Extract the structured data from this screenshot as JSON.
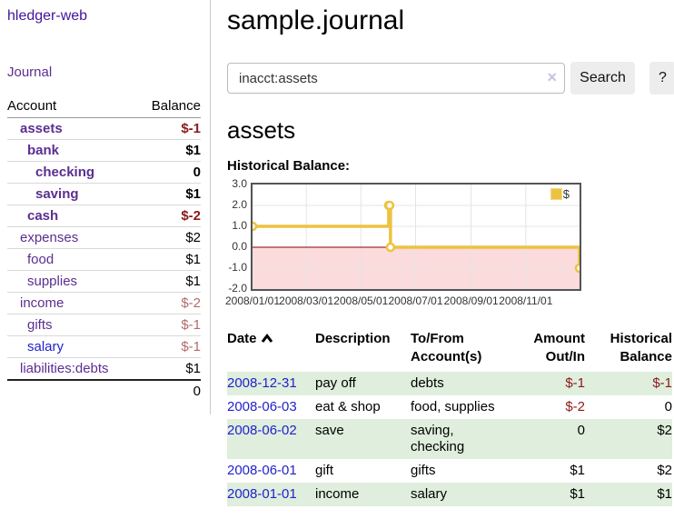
{
  "sidebar": {
    "app_title": "hledger-web",
    "nav": {
      "journal_label": "Journal"
    },
    "accounts": {
      "account_header": "Account",
      "balance_header": "Balance",
      "rows": [
        {
          "name": "assets",
          "balance": "$-1",
          "level": 1,
          "bold": true,
          "link": "purple"
        },
        {
          "name": "bank",
          "balance": "$1",
          "level": 2,
          "bold": true,
          "link": "purple"
        },
        {
          "name": "checking",
          "balance": "0",
          "level": 3,
          "bold": true,
          "link": "purple"
        },
        {
          "name": "saving",
          "balance": "$1",
          "level": 3,
          "bold": true,
          "link": "purple"
        },
        {
          "name": "cash",
          "balance": "$-2",
          "level": 2,
          "bold": true,
          "link": "purple"
        },
        {
          "name": "expenses",
          "balance": "$2",
          "level": 1,
          "bold": false,
          "link": "purple"
        },
        {
          "name": "food",
          "balance": "$1",
          "level": 2,
          "bold": false,
          "link": "purple"
        },
        {
          "name": "supplies",
          "balance": "$1",
          "level": 2,
          "bold": false,
          "link": "purple"
        },
        {
          "name": "income",
          "balance": "$-2",
          "level": 1,
          "bold": false,
          "link": "purple"
        },
        {
          "name": "gifts",
          "balance": "$-1",
          "level": 2,
          "bold": false,
          "link": "purple"
        },
        {
          "name": "salary",
          "balance": "$-1",
          "level": 2,
          "bold": false,
          "link": "blue"
        },
        {
          "name": "liabilities:debts",
          "balance": "$1",
          "level": 1,
          "bold": false,
          "link": "purple"
        }
      ],
      "total": "0"
    }
  },
  "header": {
    "title": "sample.journal"
  },
  "search": {
    "value": "inacct:assets",
    "clear_icon": "×",
    "button_label": "Search",
    "help_label": "?"
  },
  "account_page": {
    "heading": "assets"
  },
  "chart_data": {
    "type": "line",
    "title": "Historical Balance:",
    "style": "step",
    "legend": "$",
    "legend_position": "top-right",
    "series_color": "#edc240",
    "negative_region_fill": "#fbdbdb",
    "zero_line_color": "#8b0000",
    "grid": true,
    "x_range": [
      "2008-01-01",
      "2008-12-31"
    ],
    "ylim": [
      -2,
      3
    ],
    "ytick_labels": [
      "3.0",
      "2.0",
      "1.0",
      "0.0",
      "-1.0",
      "-2.0"
    ],
    "xtick_labels": [
      "2008/01/01",
      "2008/03/01",
      "2008/05/01",
      "2008/07/01",
      "2008/09/01",
      "2008/11/01"
    ],
    "xtick_dates": [
      "2008-01-01",
      "2008-03-01",
      "2008-05-01",
      "2008-07-01",
      "2008-09-01",
      "2008-11-01"
    ],
    "series": [
      {
        "name": "$",
        "points": [
          [
            "2008-01-01",
            1
          ],
          [
            "2008-06-01",
            2
          ],
          [
            "2008-06-02",
            2
          ],
          [
            "2008-06-03",
            0
          ],
          [
            "2008-12-31",
            -1
          ]
        ]
      }
    ]
  },
  "register": {
    "headers": [
      [
        "Date"
      ],
      [
        "Description"
      ],
      [
        "To/From",
        "Account(s)"
      ],
      [
        "Amount",
        "Out/In"
      ],
      [
        "Historical",
        "Balance"
      ]
    ],
    "sort_icon": "chevron-up",
    "rows": [
      {
        "date": "2008-12-31",
        "description": "pay off",
        "accounts": "debts",
        "amount": "$-1",
        "balance": "$-1"
      },
      {
        "date": "2008-06-03",
        "description": "eat & shop",
        "accounts": "food, supplies",
        "amount": "$-2",
        "balance": "0"
      },
      {
        "date": "2008-06-02",
        "description": "save",
        "accounts": "saving,\nchecking",
        "amount": "0",
        "balance": "$2"
      },
      {
        "date": "2008-06-01",
        "description": "gift",
        "accounts": "gifts",
        "amount": "$1",
        "balance": "$2"
      },
      {
        "date": "2008-01-01",
        "description": "income",
        "accounts": "salary",
        "amount": "$1",
        "balance": "$1"
      }
    ]
  }
}
